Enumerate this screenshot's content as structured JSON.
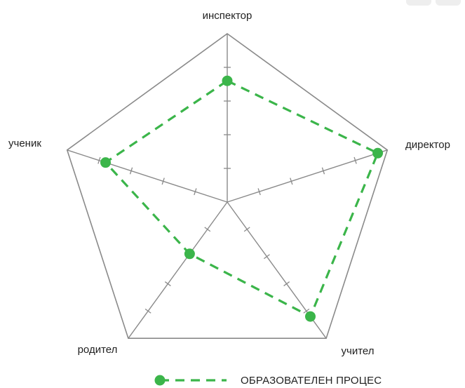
{
  "chart_data": {
    "type": "radar",
    "axes": [
      "инспектор",
      "директор",
      "учител",
      "родител",
      "ученик"
    ],
    "rmax": 5,
    "ticks": 5,
    "series": [
      {
        "name": "ОБРАЗОВАТЕЛЕН ПРОЦЕС",
        "values": [
          3.6,
          4.7,
          4.2,
          1.9,
          3.8
        ],
        "color": "#3bb54a"
      }
    ],
    "grid_color": "#8a8a8a",
    "legend_position": "bottom-right"
  }
}
